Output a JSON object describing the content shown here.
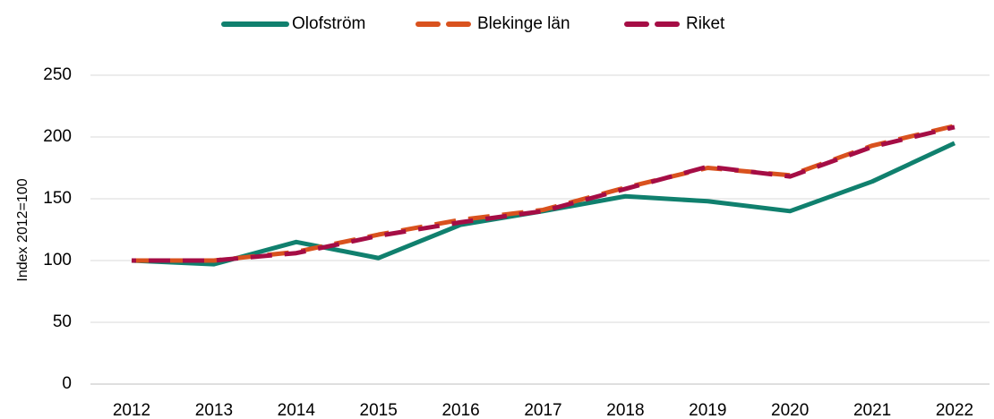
{
  "chart_data": {
    "type": "line",
    "y_label": "Index 2012=100",
    "categories": [
      "2012",
      "2013",
      "2014",
      "2015",
      "2016",
      "2017",
      "2018",
      "2019",
      "2020",
      "2021",
      "2022"
    ],
    "series": [
      {
        "name": "Olofström",
        "color": "#10806e",
        "line_style": "solid",
        "values": [
          100,
          97,
          115,
          102,
          129,
          140,
          152,
          148,
          140,
          164,
          195
        ]
      },
      {
        "name": "Blekinge län",
        "color": "#d9521e",
        "line_style": "dashed",
        "values": [
          100,
          100,
          107,
          121,
          133,
          141,
          159,
          175,
          169,
          193,
          209
        ]
      },
      {
        "name": "Riket",
        "color": "#a50d45",
        "line_style": "dashed",
        "values": [
          100,
          100,
          106,
          120,
          131,
          140,
          158,
          176,
          168,
          192,
          208
        ]
      }
    ],
    "ylim": [
      0,
      250
    ],
    "yticks": [
      0,
      50,
      100,
      150,
      200,
      250
    ],
    "grid": true,
    "legend": "top"
  }
}
